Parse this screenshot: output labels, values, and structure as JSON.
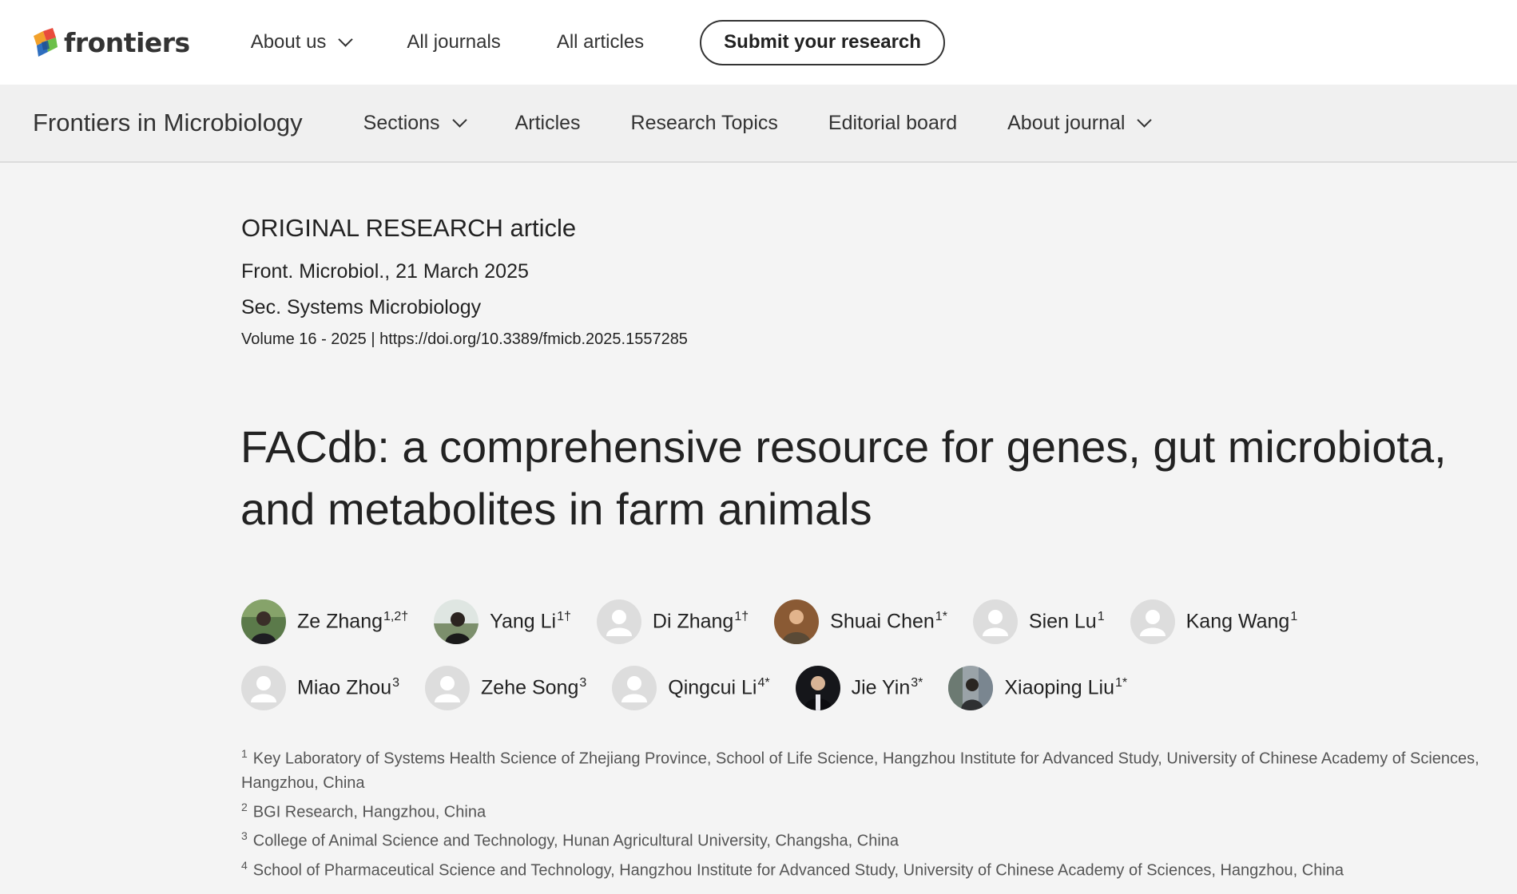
{
  "header": {
    "logo_text": "frontiers",
    "nav": [
      {
        "label": "About us",
        "dropdown": true
      },
      {
        "label": "All journals",
        "dropdown": false
      },
      {
        "label": "All articles",
        "dropdown": false
      }
    ],
    "submit_label": "Submit your research"
  },
  "journal_bar": {
    "title": "Frontiers in Microbiology",
    "nav": [
      {
        "label": "Sections",
        "dropdown": true
      },
      {
        "label": "Articles",
        "dropdown": false
      },
      {
        "label": "Research Topics",
        "dropdown": false
      },
      {
        "label": "Editorial board",
        "dropdown": false
      },
      {
        "label": "About journal",
        "dropdown": true
      }
    ]
  },
  "article": {
    "type": "ORIGINAL RESEARCH article",
    "citation": "Front. Microbiol., 21 March 2025",
    "section": "Sec. Systems Microbiology",
    "volume": "Volume 16 - 2025 | ",
    "doi": "https://doi.org/10.3389/fmicb.2025.1557285",
    "title_line1": "FACdb: a comprehensive resource for genes, gut microbiota,",
    "title_line2": "and metabolites in farm animals"
  },
  "authors": {
    "row1": [
      {
        "name": "Ze Zhang",
        "sup": "1,2†",
        "photo": "photo-green"
      },
      {
        "name": "Yang Li",
        "sup": "1†",
        "photo": "photo-outdoor"
      },
      {
        "name": "Di Zhang",
        "sup": "1†",
        "photo": "placeholder"
      },
      {
        "name": "Shuai Chen",
        "sup": "1*",
        "photo": "photo-brown"
      },
      {
        "name": "Sien Lu",
        "sup": "1",
        "photo": "placeholder"
      },
      {
        "name": "Kang Wang",
        "sup": "1",
        "photo": "placeholder"
      }
    ],
    "row2": [
      {
        "name": "Miao Zhou",
        "sup": "3",
        "photo": "placeholder"
      },
      {
        "name": "Zehe Song",
        "sup": "3",
        "photo": "placeholder"
      },
      {
        "name": "Qingcui Li",
        "sup": "4*",
        "photo": "placeholder"
      },
      {
        "name": "Jie Yin",
        "sup": "3*",
        "photo": "photo-dark"
      },
      {
        "name": "Xiaoping Liu",
        "sup": "1*",
        "photo": "photo-street"
      }
    ]
  },
  "affiliations": [
    {
      "num": "1",
      "text": "Key Laboratory of Systems Health Science of Zhejiang Province, School of Life Science, Hangzhou Institute for Advanced Study, University of Chinese Academy of Sciences, Hangzhou, China"
    },
    {
      "num": "2",
      "text": "BGI Research, Hangzhou, China"
    },
    {
      "num": "3",
      "text": "College of Animal Science and Technology, Hunan Agricultural University, Changsha, China"
    },
    {
      "num": "4",
      "text": "School of Pharmaceutical Science and Technology, Hangzhou Institute for Advanced Study, University of Chinese Academy of Sciences, Hangzhou, China"
    }
  ],
  "colors": {
    "page_bg": "#f4f4f4",
    "header_bg": "#ffffff",
    "journal_bar_bg": "#f0f0f0",
    "text": "#222222",
    "affiliation_text": "#555555",
    "placeholder_avatar": "#dddddd"
  }
}
